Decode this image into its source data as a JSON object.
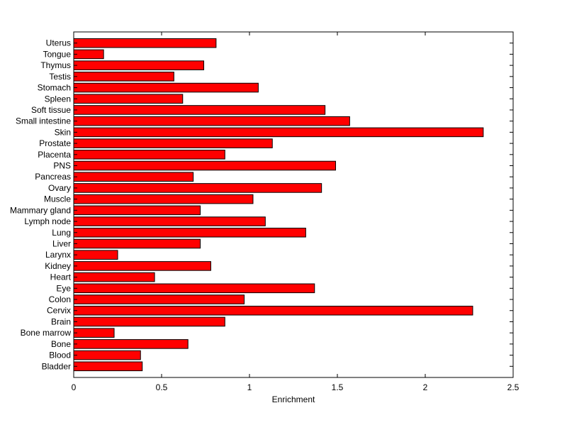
{
  "chart_data": {
    "type": "bar",
    "orientation": "horizontal",
    "categories": [
      "Uterus",
      "Tongue",
      "Thymus",
      "Testis",
      "Stomach",
      "Spleen",
      "Soft tissue",
      "Small intestine",
      "Skin",
      "Prostate",
      "Placenta",
      "PNS",
      "Pancreas",
      "Ovary",
      "Muscle",
      "Mammary gland",
      "Lymph node",
      "Lung",
      "Liver",
      "Larynx",
      "Kidney",
      "Heart",
      "Eye",
      "Colon",
      "Cervix",
      "Brain",
      "Bone marrow",
      "Bone",
      "Blood",
      "Bladder"
    ],
    "values": [
      0.81,
      0.17,
      0.74,
      0.57,
      1.05,
      0.62,
      1.43,
      1.57,
      2.33,
      1.13,
      0.86,
      1.49,
      0.68,
      1.41,
      1.02,
      0.72,
      1.09,
      1.32,
      0.72,
      0.25,
      0.78,
      0.46,
      1.37,
      0.97,
      2.27,
      0.86,
      0.23,
      0.65,
      0.38,
      0.39
    ],
    "title": "",
    "xlabel": "Enrichment",
    "ylabel": "",
    "xlim": [
      0,
      2.5
    ],
    "xticks": [
      0,
      0.5,
      1,
      1.5,
      2,
      2.5
    ],
    "xtick_labels": [
      "0",
      "0.5",
      "1",
      "1.5",
      "2",
      "2.5"
    ],
    "grid": false,
    "bar_color": "#ff0000",
    "edge_color": "#000000"
  }
}
